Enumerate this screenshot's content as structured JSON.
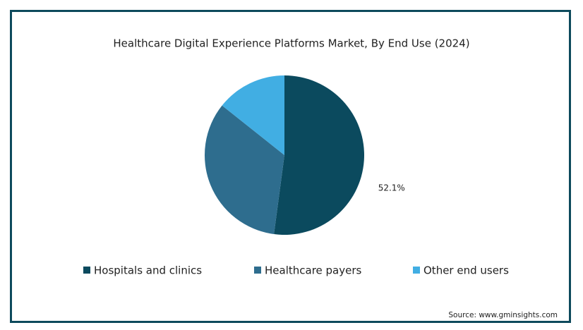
{
  "chart_data": {
    "type": "pie",
    "title": "Healthcare Digital Experience Platforms Market, By End Use (2024)",
    "categories": [
      "Hospitals and clinics",
      "Healthcare payers",
      "Other end users"
    ],
    "values": [
      52.1,
      33.6,
      14.3
    ],
    "value_labels": [
      "52.1%",
      null,
      null
    ],
    "colors": [
      "#0b4a5e",
      "#2e6d8e",
      "#41aee3"
    ],
    "legend": "bottom",
    "source": "Source: www.gminsights.com"
  }
}
